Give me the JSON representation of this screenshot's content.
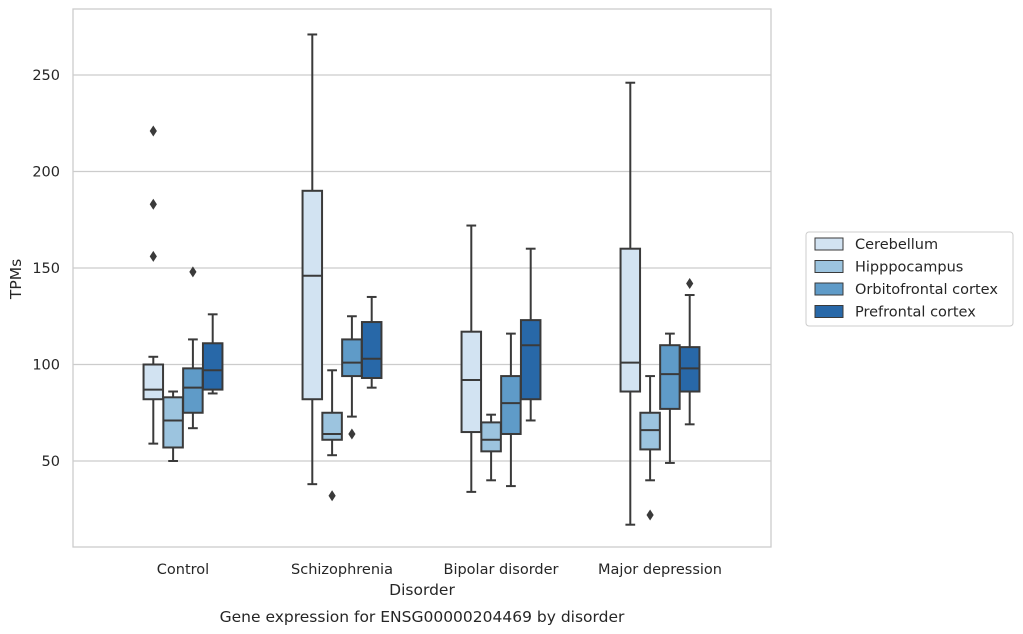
{
  "chart_data": {
    "type": "box",
    "title": "Gene expression for ENSG00000204469 by disorder",
    "xlabel": "Disorder",
    "ylabel": "TPMs",
    "ylim": [
      5,
      285
    ],
    "yticks": [
      50,
      100,
      150,
      200,
      250
    ],
    "grid": "horizontal",
    "legend_placement": "right",
    "categories": [
      "Control",
      "Schizophrenia",
      "Bipolar disorder",
      "Major depression"
    ],
    "series": [
      {
        "name": "Cerebellum",
        "color": "#d2e3f2",
        "boxes": [
          {
            "whisker_low": 59,
            "q1": 82,
            "median": 87,
            "q3": 100,
            "whisker_high": 104,
            "outliers": [
              156,
              183,
              221
            ]
          },
          {
            "whisker_low": 38,
            "q1": 82,
            "median": 146,
            "q3": 190,
            "whisker_high": 271,
            "outliers": []
          },
          {
            "whisker_low": 34,
            "q1": 65,
            "median": 92,
            "q3": 117,
            "whisker_high": 172,
            "outliers": []
          },
          {
            "whisker_low": 17,
            "q1": 86,
            "median": 101,
            "q3": 160,
            "whisker_high": 246,
            "outliers": []
          }
        ]
      },
      {
        "name": "Hipppocampus",
        "color": "#9cc4df",
        "boxes": [
          {
            "whisker_low": 50,
            "q1": 57,
            "median": 71,
            "q3": 83,
            "whisker_high": 86,
            "outliers": []
          },
          {
            "whisker_low": 53,
            "q1": 61,
            "median": 64,
            "q3": 75,
            "whisker_high": 97,
            "outliers": [
              32
            ]
          },
          {
            "whisker_low": 40,
            "q1": 55,
            "median": 61,
            "q3": 70,
            "whisker_high": 74,
            "outliers": []
          },
          {
            "whisker_low": 40,
            "q1": 56,
            "median": 66,
            "q3": 75,
            "whisker_high": 94,
            "outliers": [
              22
            ]
          }
        ]
      },
      {
        "name": "Orbitofrontal cortex",
        "color": "#5f9bc8",
        "boxes": [
          {
            "whisker_low": 67,
            "q1": 75,
            "median": 88,
            "q3": 98,
            "whisker_high": 113,
            "outliers": [
              148
            ]
          },
          {
            "whisker_low": 73,
            "q1": 94,
            "median": 101,
            "q3": 113,
            "whisker_high": 125,
            "outliers": [
              64
            ]
          },
          {
            "whisker_low": 37,
            "q1": 64,
            "median": 80,
            "q3": 94,
            "whisker_high": 116,
            "outliers": []
          },
          {
            "whisker_low": 49,
            "q1": 77,
            "median": 95,
            "q3": 110,
            "whisker_high": 116,
            "outliers": []
          }
        ]
      },
      {
        "name": "Prefrontal cortex",
        "color": "#2868a8",
        "boxes": [
          {
            "whisker_low": 85,
            "q1": 87,
            "median": 97,
            "q3": 111,
            "whisker_high": 126,
            "outliers": []
          },
          {
            "whisker_low": 88,
            "q1": 93,
            "median": 103,
            "q3": 122,
            "whisker_high": 135,
            "outliers": []
          },
          {
            "whisker_low": 71,
            "q1": 82,
            "median": 110,
            "q3": 123,
            "whisker_high": 160,
            "outliers": []
          },
          {
            "whisker_low": 69,
            "q1": 86,
            "median": 98,
            "q3": 109,
            "whisker_high": 136,
            "outliers": [
              142
            ]
          }
        ]
      }
    ]
  }
}
